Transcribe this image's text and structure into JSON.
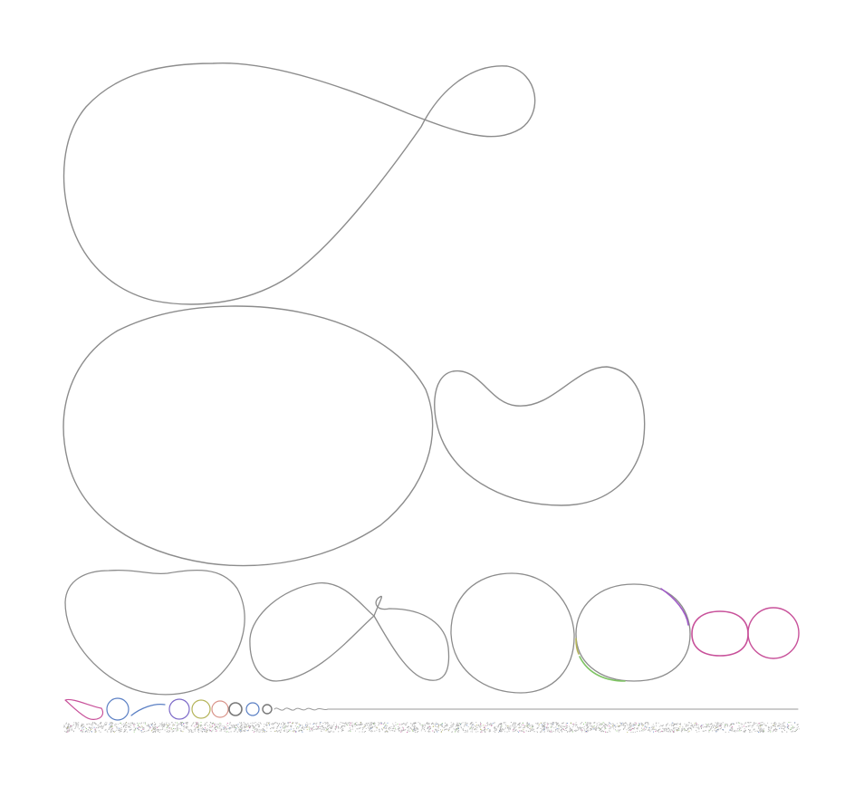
{
  "colors": {
    "background": "#ffffff",
    "curve_gray": "#8c8c8c",
    "magenta": "#c8519a",
    "blue": "#5a7fc4",
    "olive": "#b5b45a",
    "salmon": "#d9948a",
    "green": "#7ec463",
    "violet": "#a05ac8",
    "noise": "#a8a8a8"
  },
  "shapes": [
    {
      "name": "large-teardrop-loop",
      "color": "curve_gray"
    },
    {
      "name": "large-oval",
      "color": "curve_gray"
    },
    {
      "name": "kidney-shape",
      "color": "curve_gray"
    },
    {
      "name": "bean-shape",
      "color": "curve_gray"
    },
    {
      "name": "figure-eight-loop",
      "color": "curve_gray"
    },
    {
      "name": "round-shape",
      "color": "curve_gray"
    },
    {
      "name": "circle-shape",
      "color": "curve_gray"
    },
    {
      "name": "magenta-rounded-rect",
      "color": "magenta"
    },
    {
      "name": "magenta-circle",
      "color": "magenta"
    },
    {
      "name": "mini-curve-row",
      "color": "curve_gray"
    },
    {
      "name": "noise-band",
      "color": "noise"
    }
  ]
}
